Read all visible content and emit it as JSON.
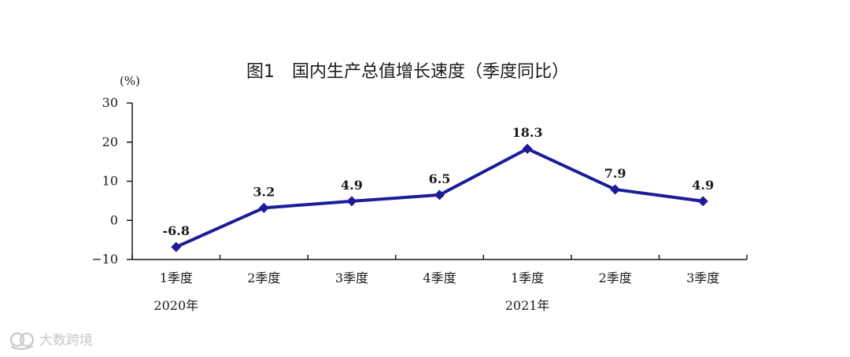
{
  "chart_data": {
    "type": "line",
    "title": "图1　国内生产总值增长速度（季度同比）",
    "ylabel": "(%)",
    "ylim": [
      -10,
      30
    ],
    "yticks": [
      "30",
      "20",
      "10",
      "0",
      "−10"
    ],
    "categories": [
      "1季度",
      "2季度",
      "3季度",
      "4季度",
      "1季度",
      "2季度",
      "3季度"
    ],
    "groups": [
      "2020年",
      "2021年"
    ],
    "series": [
      {
        "values": [
          -6.8,
          3.2,
          4.9,
          6.5,
          18.3,
          7.9,
          4.9
        ],
        "labels": [
          "-6.8",
          "3.2",
          "4.9",
          "6.5",
          "18.3",
          "7.9",
          "4.9"
        ]
      }
    ],
    "grid": false,
    "line_color": "#1c1c9a"
  },
  "watermark": {
    "text": "大数跨境"
  }
}
